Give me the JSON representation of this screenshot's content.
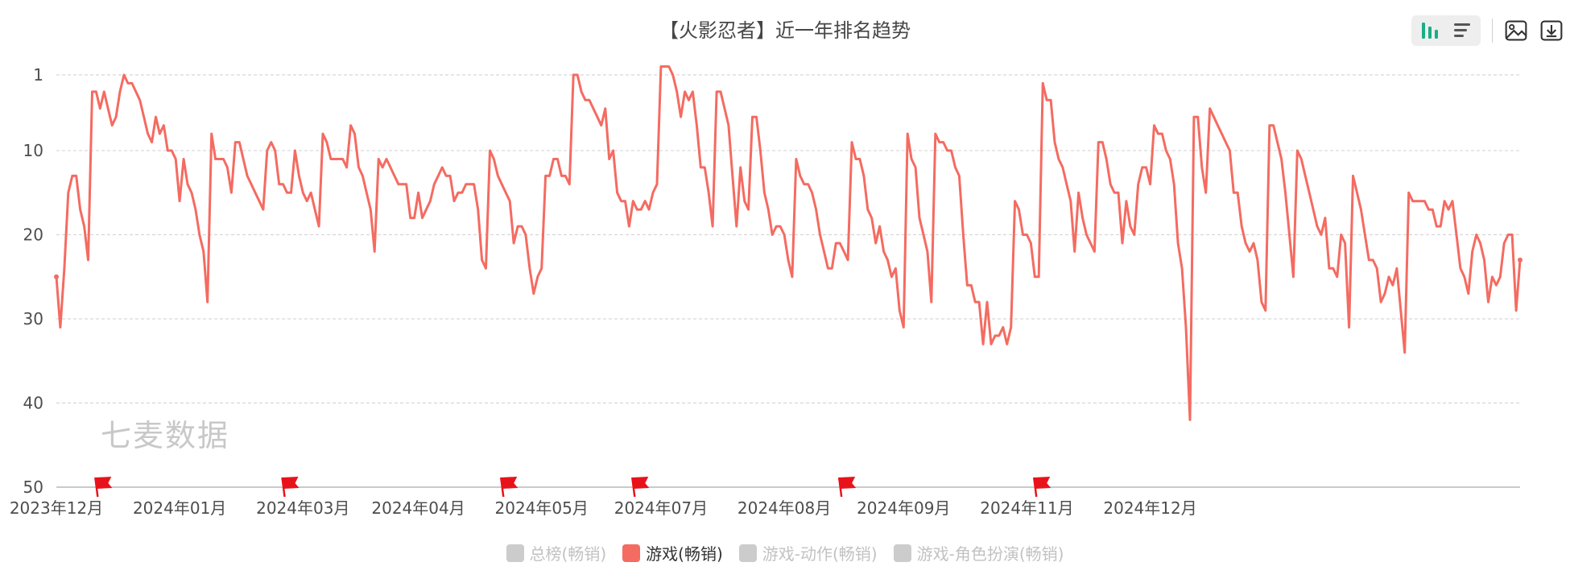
{
  "title": "【火影忍者】近一年排名趋势",
  "watermark": "七麦数据",
  "toolbar": {
    "icons": [
      "bar-chart-icon",
      "list-icon",
      "image-icon",
      "download-icon"
    ]
  },
  "legend": [
    {
      "label": "总榜(畅销)",
      "active": false
    },
    {
      "label": "游戏(畅销)",
      "active": true
    },
    {
      "label": "游戏-动作(畅销)",
      "active": false
    },
    {
      "label": "游戏-角色扮演(畅销)",
      "active": false
    }
  ],
  "colors": {
    "series": "#f46b61",
    "inactive": "#cccccc",
    "grid": "#d6d6d6",
    "axis": "#b8b8b8",
    "flag": "#e8131a",
    "toolbar_active": "#1aad86"
  },
  "chart_data": {
    "type": "line",
    "y_axis": {
      "ticks": [
        1,
        10,
        20,
        30,
        40,
        50
      ],
      "inverted": true,
      "min": 1,
      "max": 50
    },
    "x_axis": {
      "ticks": [
        {
          "date": "2023-12-04",
          "label": "2023年12月"
        },
        {
          "date": "2024-01-04",
          "label": "2024年01月"
        },
        {
          "date": "2024-02-04",
          "label": "2024年03月"
        },
        {
          "date": "2024-03-04",
          "label": "2024年04月"
        },
        {
          "date": "2024-04-04",
          "label": "2024年05月"
        },
        {
          "date": "2024-05-04",
          "label": "2024年07月"
        },
        {
          "date": "2024-06-04",
          "label": "2024年08月"
        },
        {
          "date": "2024-07-04",
          "label": "2024年09月"
        },
        {
          "date": "2024-08-04",
          "label": "2024年11月"
        },
        {
          "date": "2024-09-04",
          "label": "2024年12月"
        }
      ]
    },
    "grid": true,
    "flags": [
      "2023-12-15",
      "2024-01-31",
      "2024-03-26",
      "2024-04-28",
      "2024-06-19",
      "2024-08-07"
    ],
    "series": [
      {
        "name": "游戏(畅销)",
        "start_date": "2023-12-04",
        "values": [
          25,
          31,
          24,
          15,
          13,
          13,
          17,
          19,
          23,
          3,
          3,
          5,
          3,
          5,
          7,
          6,
          3,
          1,
          2,
          2,
          3,
          4,
          6,
          8,
          9,
          6,
          8,
          7,
          10,
          10,
          11,
          16,
          11,
          14,
          15,
          17,
          20,
          22,
          28,
          8,
          11,
          11,
          11,
          12,
          15,
          9,
          9,
          11,
          13,
          14,
          15,
          16,
          17,
          10,
          9,
          10,
          14,
          14,
          15,
          15,
          10,
          13,
          15,
          16,
          15,
          17,
          19,
          8,
          9,
          11,
          11,
          11,
          11,
          12,
          7,
          8,
          12,
          13,
          15,
          17,
          22,
          11,
          12,
          11,
          12,
          13,
          14,
          14,
          14,
          18,
          18,
          15,
          18,
          17,
          16,
          14,
          13,
          12,
          13,
          13,
          16,
          15,
          15,
          14,
          14,
          14,
          17,
          23,
          24,
          10,
          11,
          13,
          14,
          15,
          16,
          21,
          19,
          19,
          20,
          24,
          27,
          25,
          24,
          13,
          13,
          11,
          11,
          13,
          13,
          14,
          1,
          1,
          3,
          4,
          4,
          5,
          6,
          7,
          5,
          11,
          10,
          15,
          16,
          16,
          19,
          16,
          17,
          17,
          16,
          17,
          15,
          14,
          0,
          0,
          0,
          1,
          3,
          6,
          3,
          4,
          3,
          7,
          12,
          12,
          15,
          19,
          3,
          3,
          5,
          7,
          13,
          19,
          12,
          16,
          17,
          6,
          6,
          10,
          15,
          17,
          20,
          19,
          19,
          20,
          23,
          25,
          11,
          13,
          14,
          14,
          15,
          17,
          20,
          22,
          24,
          24,
          21,
          21,
          22,
          23,
          9,
          11,
          11,
          13,
          17,
          18,
          21,
          19,
          22,
          23,
          25,
          24,
          29,
          31,
          8,
          11,
          12,
          18,
          20,
          22,
          28,
          8,
          9,
          9,
          10,
          10,
          12,
          13,
          20,
          26,
          26,
          28,
          28,
          33,
          28,
          33,
          32,
          32,
          31,
          33,
          31,
          16,
          17,
          20,
          20,
          21,
          25,
          25,
          2,
          4,
          4,
          9,
          11,
          12,
          14,
          16,
          22,
          15,
          18,
          20,
          21,
          22,
          9,
          9,
          11,
          14,
          15,
          15,
          21,
          16,
          19,
          20,
          14,
          12,
          12,
          14,
          7,
          8,
          8,
          10,
          11,
          14,
          21,
          24,
          31,
          42,
          6,
          6,
          12,
          15,
          5,
          6,
          7,
          8,
          9,
          10,
          15,
          15,
          19,
          21,
          22,
          21,
          23,
          28,
          29,
          7,
          7,
          9,
          11,
          15,
          20,
          25,
          10,
          11,
          13,
          15,
          17,
          19,
          20,
          18,
          24,
          24,
          25,
          20,
          21,
          31,
          13,
          15,
          17,
          20,
          23,
          23,
          24,
          28,
          27,
          25,
          26,
          24,
          29,
          34,
          15,
          16,
          16,
          16,
          16,
          17,
          17,
          19,
          19,
          16,
          17,
          16,
          20,
          24,
          25,
          27,
          22,
          20,
          21,
          23,
          28,
          25,
          26,
          25,
          21,
          20,
          20,
          29,
          23
        ]
      }
    ]
  }
}
